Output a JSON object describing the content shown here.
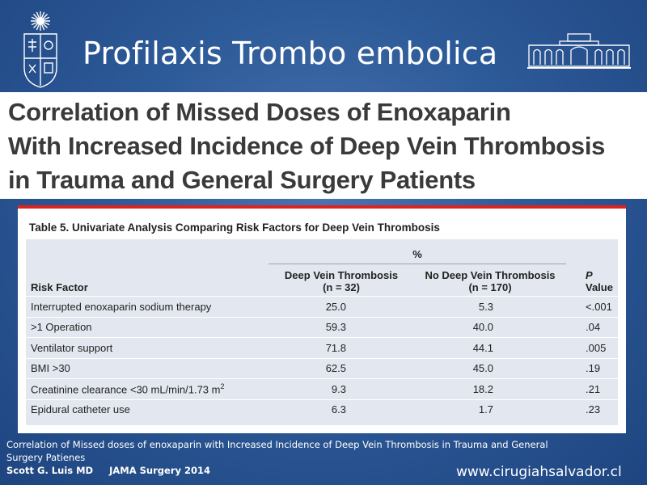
{
  "slide": {
    "title": "Profilaxis Trombo embolica",
    "website": "www.cirugiahsalvador.cl"
  },
  "logos": {
    "left": {
      "icon": "university-crest-icon"
    },
    "right": {
      "icon": "hospital-building-icon"
    }
  },
  "paper": {
    "title_lines": [
      "Correlation of Missed Doses of Enoxaparin",
      "With Increased Incidence of Deep Vein Thrombosis",
      "in Trauma and General Surgery Patients"
    ]
  },
  "table": {
    "caption": "Table 5. Univariate Analysis Comparing Risk Factors for Deep Vein Thrombosis",
    "group_header": "%",
    "columns": {
      "factor": "Risk Factor",
      "dvt_line1": "Deep Vein Thrombosis",
      "dvt_line2": "(n = 32)",
      "nodvt_line1": "No Deep Vein Thrombosis",
      "nodvt_line2": "(n = 170)",
      "p_label": "P",
      "p_suffix": " Value"
    },
    "rows": [
      {
        "factor": "Interrupted enoxaparin sodium therapy",
        "dvt": "25.0",
        "nodvt": "5.3",
        "p": "<.001"
      },
      {
        "factor": ">1 Operation",
        "dvt": "59.3",
        "nodvt": "40.0",
        "p": ".04"
      },
      {
        "factor": "Ventilator support",
        "dvt": "71.8",
        "nodvt": "44.1",
        "p": ".005"
      },
      {
        "factor": "BMI >30",
        "dvt": "62.5",
        "nodvt": "45.0",
        "p": ".19"
      },
      {
        "factor": "Creatinine clearance <30 mL/min/1.73 m",
        "factor_sup": "2",
        "dvt": "9.3",
        "nodvt": "18.2",
        "p": ".21"
      },
      {
        "factor": "Epidural catheter use",
        "dvt": "6.3",
        "nodvt": "1.7",
        "p": ".23"
      }
    ],
    "colors": {
      "accent_bar": "#e2211c",
      "table_bg": "#e3e8f0"
    }
  },
  "citation": {
    "line1": "Correlation of Missed doses of enoxaparin with Increased Incidence of Deep Vein Thrombosis in Trauma and General",
    "line2": "Surgery Patienes",
    "line3": "Scott G. Luis MD     JAMA Surgery 2014"
  }
}
